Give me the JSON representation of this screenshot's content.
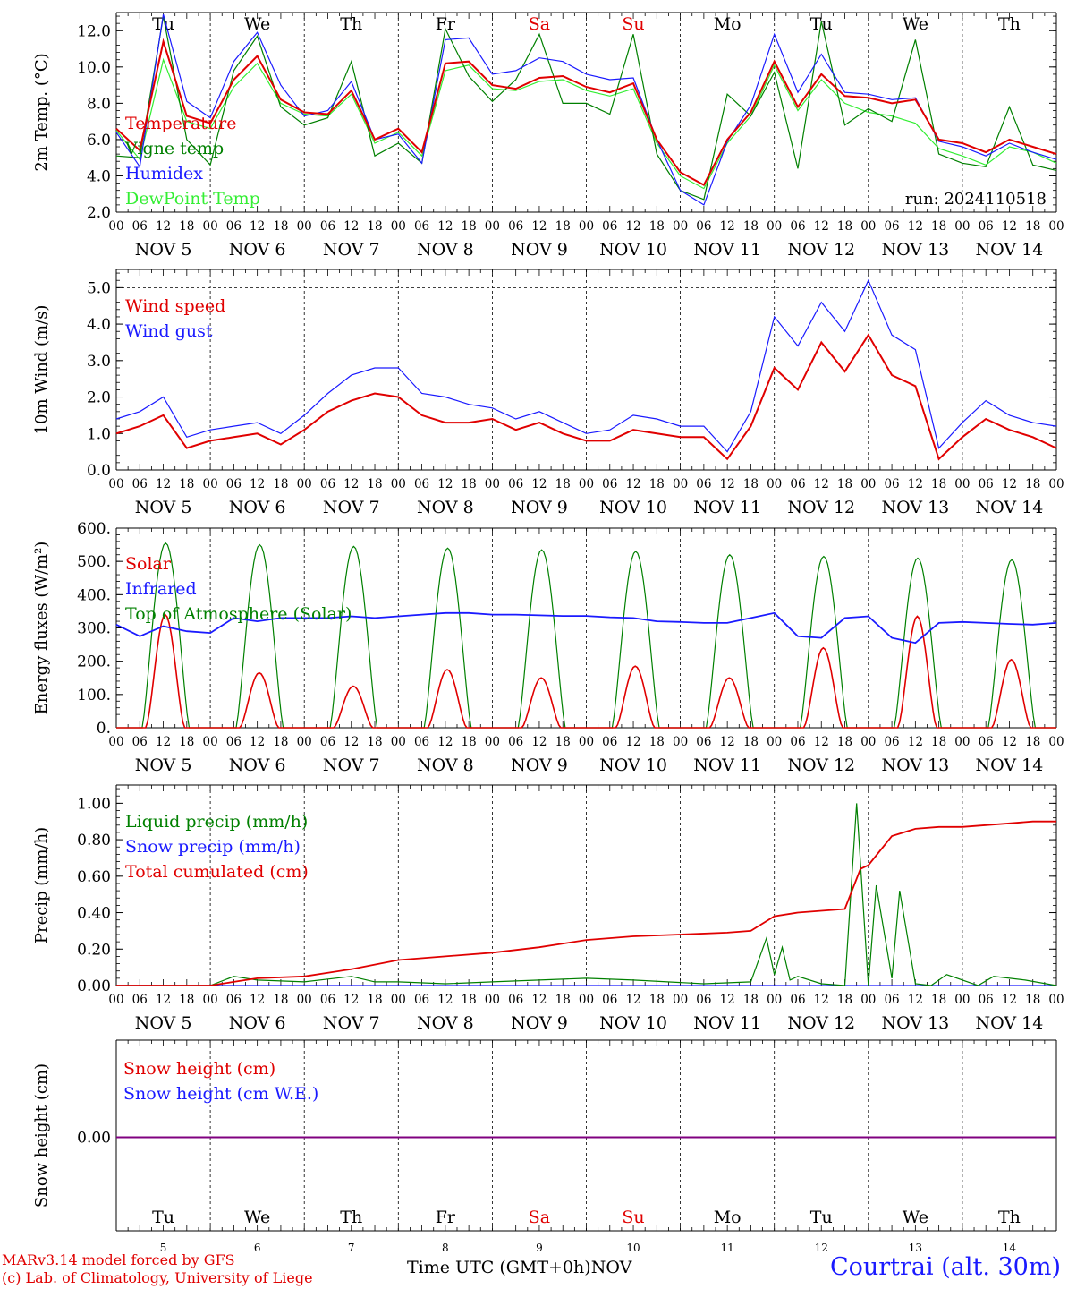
{
  "credits": [
    "MARv3.14 model forced by GFS",
    "(c) Lab. of Climatology, University of Liege"
  ],
  "xaxis_title": "Time UTC (GMT+0h)",
  "month_label": "NOV",
  "station": "Courtrai (alt. 30m)",
  "run_label": "run: 2024110518",
  "hour_labels": [
    "00",
    "06",
    "12",
    "18"
  ],
  "date_labels": [
    "NOV  5",
    "NOV  6",
    "NOV  7",
    "NOV  8",
    "NOV  9",
    "NOV 10",
    "NOV 11",
    "NOV 12",
    "NOV 13",
    "NOV 14"
  ],
  "weekdays": [
    "Tu",
    "We",
    "Th",
    "Fr",
    "Sa",
    "Su",
    "Mo",
    "Tu",
    "We",
    "Th"
  ],
  "day_numbers": [
    "5",
    "6",
    "7",
    "8",
    "9",
    "10",
    "11",
    "12",
    "13",
    "14"
  ],
  "colors": {
    "red": "#e00000",
    "green": "#008000",
    "blue": "#1a1aff",
    "lightgreen": "#33ee33",
    "purple": "#800080",
    "weekend": "#e00000"
  },
  "chart_data": [
    {
      "type": "line",
      "ylabel": "2m Temp. (°C)",
      "ylim": [
        2,
        13
      ],
      "yticks": [
        "2.0",
        "4.0",
        "6.0",
        "8.0",
        "10.0",
        "12.0"
      ],
      "x": [
        0,
        6,
        12,
        18,
        24,
        30,
        36,
        42,
        48,
        54,
        60,
        66,
        72,
        78,
        84,
        90,
        96,
        102,
        108,
        114,
        120,
        126,
        132,
        138,
        144,
        150,
        156,
        162,
        168,
        174,
        180,
        186,
        192,
        198,
        204,
        210,
        216,
        222,
        228,
        234,
        240
      ],
      "series": [
        {
          "name": "Temperature",
          "color": "red",
          "values": [
            6.6,
            5.4,
            11.4,
            7.3,
            6.9,
            9.3,
            10.6,
            8.2,
            7.5,
            7.4,
            8.7,
            6.0,
            6.6,
            5.3,
            10.2,
            10.3,
            9.0,
            8.8,
            9.4,
            9.5,
            8.9,
            8.6,
            9.1,
            6.0,
            4.2,
            3.5,
            6.0,
            7.5,
            10.3,
            7.8,
            9.6,
            8.4,
            8.3,
            8.0,
            8.2,
            6.0,
            5.8,
            5.3,
            6.0,
            5.6,
            5.2
          ]
        },
        {
          "name": "Vigne temp",
          "color": "green",
          "values": [
            5.1,
            5.0,
            12.8,
            6.0,
            4.6,
            9.8,
            11.7,
            7.8,
            6.8,
            7.2,
            10.3,
            5.1,
            5.8,
            4.7,
            12.1,
            9.5,
            8.1,
            9.3,
            11.8,
            8.0,
            8.0,
            7.4,
            11.8,
            5.2,
            3.2,
            2.7,
            8.5,
            7.3,
            9.7,
            4.4,
            12.5,
            6.8,
            7.7,
            7.0,
            11.5,
            5.2,
            4.7,
            4.5,
            7.8,
            4.6,
            4.3
          ]
        },
        {
          "name": "Humidex",
          "color": "blue",
          "values": [
            6.4,
            4.5,
            12.9,
            8.1,
            7.2,
            10.3,
            11.9,
            9.0,
            7.3,
            7.6,
            9.2,
            6.0,
            6.3,
            4.7,
            11.5,
            11.6,
            9.6,
            9.8,
            10.5,
            10.3,
            9.6,
            9.3,
            9.4,
            6.0,
            3.2,
            2.4,
            5.9,
            7.9,
            11.8,
            8.6,
            10.7,
            8.6,
            8.5,
            8.2,
            8.3,
            5.9,
            5.6,
            5.1,
            5.8,
            5.3,
            4.9
          ]
        },
        {
          "name": "DewPoint Temp",
          "color": "lightgreen",
          "values": [
            6.5,
            4.9,
            10.4,
            7.0,
            6.6,
            8.9,
            10.2,
            8.0,
            7.4,
            7.3,
            8.5,
            5.8,
            6.4,
            5.1,
            9.8,
            10.1,
            8.8,
            8.7,
            9.2,
            9.3,
            8.7,
            8.4,
            8.8,
            5.8,
            4.0,
            3.3,
            5.8,
            7.3,
            10.1,
            7.6,
            9.3,
            8.0,
            7.5,
            7.3,
            6.9,
            5.5,
            5.1,
            4.6,
            5.6,
            5.3,
            4.7
          ]
        }
      ]
    },
    {
      "type": "line",
      "ylabel": "10m Wind (m/s)",
      "ylim": [
        0,
        5.5
      ],
      "yticks": [
        "0.0",
        "1.0",
        "2.0",
        "3.0",
        "4.0",
        "5.0"
      ],
      "x": [
        0,
        6,
        12,
        18,
        24,
        30,
        36,
        42,
        48,
        54,
        60,
        66,
        72,
        78,
        84,
        90,
        96,
        102,
        108,
        114,
        120,
        126,
        132,
        138,
        144,
        150,
        156,
        162,
        168,
        174,
        180,
        186,
        192,
        198,
        204,
        210,
        216,
        222,
        228,
        234,
        240
      ],
      "series": [
        {
          "name": "Wind speed",
          "color": "red",
          "values": [
            1.0,
            1.2,
            1.5,
            0.6,
            0.8,
            0.9,
            1.0,
            0.7,
            1.1,
            1.6,
            1.9,
            2.1,
            2.0,
            1.5,
            1.3,
            1.3,
            1.4,
            1.1,
            1.3,
            1.0,
            0.8,
            0.8,
            1.1,
            1.0,
            0.9,
            0.9,
            0.3,
            1.2,
            2.8,
            2.2,
            3.5,
            2.7,
            3.7,
            2.6,
            2.3,
            0.3,
            0.9,
            1.4,
            1.1,
            0.9,
            0.6
          ]
        },
        {
          "name": "Wind gust",
          "color": "blue",
          "values": [
            1.4,
            1.6,
            2.0,
            0.9,
            1.1,
            1.2,
            1.3,
            1.0,
            1.5,
            2.1,
            2.6,
            2.8,
            2.8,
            2.1,
            2.0,
            1.8,
            1.7,
            1.4,
            1.6,
            1.3,
            1.0,
            1.1,
            1.5,
            1.4,
            1.2,
            1.2,
            0.5,
            1.6,
            4.2,
            3.4,
            4.6,
            3.8,
            5.2,
            3.7,
            3.3,
            0.6,
            1.3,
            1.9,
            1.5,
            1.3,
            1.2
          ]
        }
      ]
    },
    {
      "type": "line",
      "ylabel": "Energy fluxes (W/m²)",
      "ylim": [
        0,
        600
      ],
      "yticks": [
        "0.",
        "100.",
        "200.",
        "300.",
        "400.",
        "500.",
        "600."
      ],
      "peaks": {
        "Solar": [
          340,
          165,
          125,
          175,
          150,
          185,
          150,
          240,
          335,
          205
        ],
        "Top of Atmosphere (Solar)": [
          555,
          550,
          545,
          540,
          535,
          530,
          520,
          515,
          510,
          505
        ]
      },
      "series": [
        {
          "name": "Solar",
          "color": "red"
        },
        {
          "name": "Infrared",
          "color": "blue",
          "x": [
            0,
            6,
            12,
            18,
            24,
            30,
            36,
            42,
            48,
            54,
            60,
            66,
            72,
            78,
            84,
            90,
            96,
            102,
            108,
            114,
            120,
            126,
            132,
            138,
            144,
            150,
            156,
            162,
            168,
            174,
            180,
            186,
            192,
            198,
            204,
            210,
            216,
            222,
            228,
            234,
            240
          ],
          "values": [
            310,
            275,
            305,
            290,
            285,
            330,
            320,
            330,
            330,
            330,
            335,
            330,
            335,
            340,
            345,
            345,
            340,
            340,
            338,
            336,
            336,
            332,
            330,
            320,
            318,
            315,
            315,
            330,
            345,
            275,
            270,
            330,
            335,
            270,
            255,
            315,
            318,
            315,
            312,
            310,
            315
          ]
        },
        {
          "name": "Top of Atmosphere (Solar)",
          "color": "green"
        }
      ]
    },
    {
      "type": "line",
      "ylabel": "Precip (mm/h)",
      "ylim": [
        0,
        1.1
      ],
      "yticks": [
        "0.00",
        "0.20",
        "0.40",
        "0.60",
        "0.80",
        "1.00"
      ],
      "series": [
        {
          "name": "Liquid precip (mm/h)",
          "color": "green",
          "x": [
            0,
            24,
            30,
            36,
            48,
            60,
            66,
            72,
            84,
            96,
            108,
            120,
            132,
            150,
            162,
            166,
            168,
            170,
            172,
            174,
            180,
            186,
            189,
            192,
            194,
            198,
            200,
            204,
            208,
            212,
            220,
            224,
            232,
            240
          ],
          "values": [
            0,
            0,
            0.05,
            0.03,
            0.02,
            0.05,
            0.02,
            0.02,
            0.01,
            0.02,
            0.03,
            0.04,
            0.03,
            0.01,
            0.02,
            0.26,
            0.06,
            0.21,
            0.03,
            0.05,
            0.01,
            0.0,
            1.0,
            0.0,
            0.55,
            0.04,
            0.52,
            0.01,
            0.0,
            0.06,
            0.0,
            0.05,
            0.03,
            0.0
          ]
        },
        {
          "name": "Snow precip (mm/h)",
          "color": "blue",
          "x": [
            0,
            240
          ],
          "values": [
            0,
            0
          ]
        },
        {
          "name": "Total cumulated (cm)",
          "color": "red",
          "x": [
            0,
            24,
            30,
            36,
            48,
            60,
            72,
            84,
            96,
            108,
            120,
            132,
            144,
            156,
            162,
            168,
            174,
            180,
            186,
            190,
            192,
            198,
            204,
            210,
            216,
            222,
            228,
            234,
            240
          ],
          "values": [
            0,
            0,
            0.02,
            0.04,
            0.05,
            0.09,
            0.14,
            0.16,
            0.18,
            0.21,
            0.25,
            0.27,
            0.28,
            0.29,
            0.3,
            0.38,
            0.4,
            0.41,
            0.42,
            0.64,
            0.66,
            0.82,
            0.86,
            0.87,
            0.87,
            0.88,
            0.89,
            0.9,
            0.9
          ]
        }
      ]
    },
    {
      "type": "line",
      "ylabel": "Snow height (cm)",
      "yticks": [
        "0.00"
      ],
      "series": [
        {
          "name": "Snow height (cm)",
          "color": "red",
          "x": [
            0,
            240
          ],
          "values": [
            0,
            0
          ]
        },
        {
          "name": "Snow height (cm W.E.)",
          "color": "blue",
          "x": [
            0,
            240
          ],
          "values": [
            0,
            0
          ]
        }
      ]
    }
  ]
}
